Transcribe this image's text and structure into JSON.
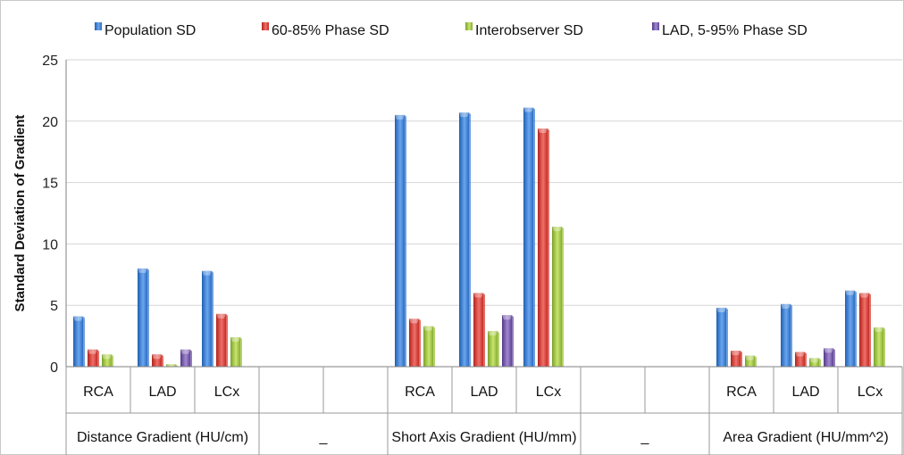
{
  "chart_data": {
    "type": "bar",
    "title": "",
    "xlabel": "",
    "ylabel": "Standard Deviation of Gradient",
    "ylim": [
      0,
      25
    ],
    "yticks": [
      0,
      5,
      10,
      15,
      20,
      25
    ],
    "grid": true,
    "legend_position": "top",
    "categories": [
      "RCA",
      "LAD",
      "LCx",
      "",
      "",
      "RCA",
      "LAD",
      "LCx",
      "",
      "",
      "RCA",
      "LAD",
      "LCx"
    ],
    "groups": [
      {
        "label": "Distance Gradient (HU/cm)"
      },
      {
        "label": "_"
      },
      {
        "label": "Short Axis Gradient (HU/mm)"
      },
      {
        "label": "_"
      },
      {
        "label": "Area Gradient (HU/mm^2)"
      }
    ],
    "series": [
      {
        "name": "Population SD",
        "color": "#3d7fd4",
        "values": [
          4.1,
          8.0,
          7.8,
          null,
          null,
          20.5,
          20.7,
          21.1,
          null,
          null,
          4.8,
          5.1,
          6.2
        ]
      },
      {
        "name": "60-85% Phase SD",
        "color": "#d63b32",
        "values": [
          1.4,
          1.0,
          4.3,
          null,
          null,
          3.9,
          6.0,
          19.4,
          null,
          null,
          1.3,
          1.2,
          6.0
        ]
      },
      {
        "name": "Interobserver SD",
        "color": "#9bc23c",
        "values": [
          1.0,
          0.2,
          2.4,
          null,
          null,
          3.3,
          2.9,
          11.4,
          null,
          null,
          0.9,
          0.7,
          3.2
        ]
      },
      {
        "name": "LAD, 5-95% Phase SD",
        "color": "#6f52a2",
        "values": [
          null,
          1.4,
          null,
          null,
          null,
          null,
          4.2,
          null,
          null,
          null,
          null,
          1.5,
          null
        ]
      }
    ]
  }
}
